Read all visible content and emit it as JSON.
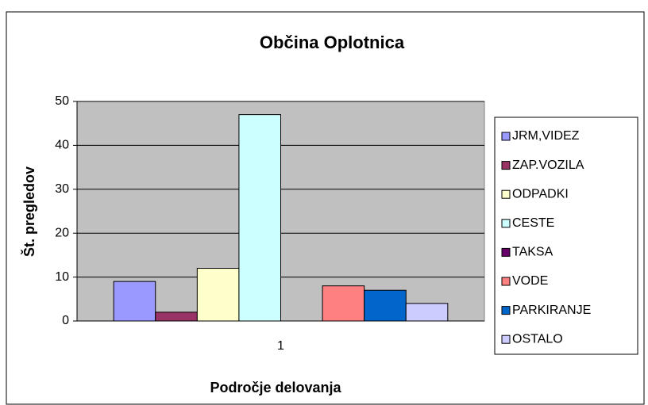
{
  "chart_data": {
    "type": "bar",
    "title": "Občina Oplotnica",
    "x_label": "Področje delovanja",
    "y_label": "Št. pregledov",
    "categories": [
      "1"
    ],
    "series": [
      {
        "name": "JRM,VIDEZ",
        "color": "#9999ff",
        "values": [
          9
        ]
      },
      {
        "name": "ZAP.VOZILA",
        "color": "#993366",
        "values": [
          2
        ]
      },
      {
        "name": "ODPADKI",
        "color": "#ffffcc",
        "values": [
          12
        ]
      },
      {
        "name": "CESTE",
        "color": "#ccffff",
        "values": [
          47
        ]
      },
      {
        "name": "TAKSA",
        "color": "#660066",
        "values": [
          0
        ]
      },
      {
        "name": "VODE",
        "color": "#ff8080",
        "values": [
          8
        ]
      },
      {
        "name": "PARKIRANJE",
        "color": "#0066cc",
        "values": [
          7
        ]
      },
      {
        "name": "OSTALO",
        "color": "#ccccff",
        "values": [
          4
        ]
      }
    ],
    "ylim": [
      0,
      50
    ],
    "yticks": [
      0,
      10,
      20,
      30,
      40,
      50
    ],
    "grid": true,
    "legend": "right"
  }
}
